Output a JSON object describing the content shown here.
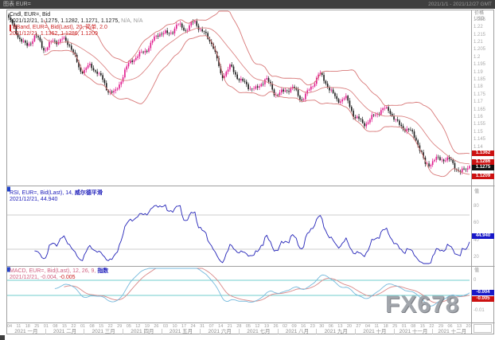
{
  "titlebar": {
    "title": "图表 EUR=",
    "range": "2021/1/1 - 2021/12/27 GMT"
  },
  "watermark": "FX678",
  "colors": {
    "candle_up": "#e0188c",
    "candle_down": "#1a1a1a",
    "bollinger": "#d87878",
    "rsi_line": "#2323b8",
    "macd_line": "#74b9dc",
    "signal_line": "#d98888",
    "level_line": "#72cccc",
    "grid_line": "#bbbbbb",
    "border": "#a0a0a0",
    "box_red": "#cc1111",
    "box_black": "#111111",
    "box_blue": "#1818c8",
    "titlebar_bg": "#3f3f3f",
    "panel_marker": "#2244cc"
  },
  "main_panel": {
    "legend_line1": "Cndl, EUR=, Bid",
    "legend_line2": "2021/12/21, 1.1275, 1.1282, 1.1271, 1.1275,",
    "legend_line2_na": "N/A, N/A",
    "legend_line3": "BBand, EUR=, Bid(Last), 20, 简单, 2.0",
    "legend_line4": "2021/12/21, 1.1362, 1.1286, 1.1209",
    "axis_header1": "价格",
    "axis_header2": "USD",
    "axis_boxes": [
      {
        "text": "1.1362",
        "kind": "red"
      },
      {
        "text": "1.1286",
        "kind": "red"
      },
      {
        "text": "1.1275",
        "kind": "black"
      },
      {
        "text": "1.1209",
        "kind": "red"
      }
    ]
  },
  "rsi_panel": {
    "legend_line1": "RSI, EUR=, Bid(Last), 14,",
    "legend_line1b": "威尔德平滑",
    "legend_line2": "2021/12/21, 44.940",
    "axis_header": "值",
    "axis_box": {
      "text": "44.940",
      "kind": "blue"
    }
  },
  "macd_panel": {
    "legend_line1": "MACD, EUR=, Bid(Last), 12, 26, 9,",
    "legend_line1b": "指数",
    "legend_line2": "2021/12/21, -0.004,",
    "legend_line2b": "-0.005",
    "axis_header": "值",
    "axis_boxes": [
      {
        "text": "-0.004",
        "kind": "blue"
      },
      {
        "text": "-0.005",
        "kind": "red"
      }
    ]
  },
  "time_axis": {
    "weeks": [
      "04",
      "11",
      "18",
      "25",
      "01",
      "08",
      "15",
      "22",
      "01",
      "08",
      "15",
      "22",
      "29",
      "05",
      "12",
      "19",
      "26",
      "03",
      "10",
      "17",
      "24",
      "31",
      "07",
      "14",
      "21",
      "28",
      "05",
      "12",
      "19",
      "26",
      "02",
      "09",
      "16",
      "23",
      "30",
      "06",
      "13",
      "20",
      "27",
      "04",
      "11",
      "18",
      "25",
      "01",
      "08",
      "15",
      "22",
      "29",
      "06",
      "13",
      "20"
    ],
    "months": [
      "2021 一月",
      "2021 二月",
      "2021 三月",
      "2021 四月",
      "2021 五月",
      "2021 六月",
      "2021 七月",
      "2021 八月",
      "2021 九月",
      "2021 十月",
      "2021 十一月",
      "2021 十二月"
    ]
  },
  "chart_data": {
    "type": "candlestick",
    "symbol": "EUR=",
    "interval": "daily",
    "x_range": [
      "2021-01-04",
      "2021-12-21"
    ],
    "price_axis_range": [
      1.115,
      1.231
    ],
    "price_tick_labels": [
      "1.225",
      "1.22",
      "1.215",
      "1.21",
      "1.205",
      "1.2",
      "1.195",
      "1.19",
      "1.185",
      "1.18",
      "1.175",
      "1.17",
      "1.165",
      "1.16",
      "1.155",
      "1.15",
      "1.145",
      "1.14"
    ],
    "weekly_close_anchors": [
      1.225,
      1.216,
      1.208,
      1.2136,
      1.205,
      1.212,
      1.2119,
      1.207,
      1.1915,
      1.195,
      1.19,
      1.179,
      1.177,
      1.19,
      1.198,
      1.203,
      1.2098,
      1.216,
      1.2145,
      1.223,
      1.219,
      1.2225,
      1.2166,
      1.2107,
      1.186,
      1.193,
      1.187,
      1.181,
      1.177,
      1.187,
      1.177,
      1.176,
      1.1795,
      1.173,
      1.179,
      1.188,
      1.1815,
      1.1726,
      1.1725,
      1.16,
      1.1566,
      1.16,
      1.164,
      1.1645,
      1.156,
      1.1517,
      1.1445,
      1.129,
      1.132,
      1.1315,
      1.13,
      1.124,
      1.1275
    ],
    "last_candle": {
      "date": "2021/12/21",
      "open": 1.1275,
      "high": 1.1282,
      "low": 1.1271,
      "close": 1.1275
    },
    "bollinger": {
      "period": 20,
      "stdev": 2.0,
      "ma_type": "简单",
      "last": {
        "upper": 1.1362,
        "middle": 1.1286,
        "lower": 1.1209
      }
    },
    "rsi": {
      "period": 14,
      "smoothing": "威尔德平滑",
      "last": 44.94,
      "level_lines": [
        70,
        30
      ],
      "tick_labels": [
        "80",
        "60",
        "40",
        "20"
      ],
      "tick_values": [
        80,
        60,
        40,
        20
      ]
    },
    "macd": {
      "fast": 12,
      "slow": 26,
      "signal": 9,
      "ma_type": "指数",
      "last_macd": -0.004,
      "last_signal": -0.005,
      "level_lines": [
        0,
        -0.005
      ],
      "tick_labels": [
        "0",
        "-0.01"
      ],
      "tick_values": [
        0,
        -0.01
      ]
    }
  }
}
